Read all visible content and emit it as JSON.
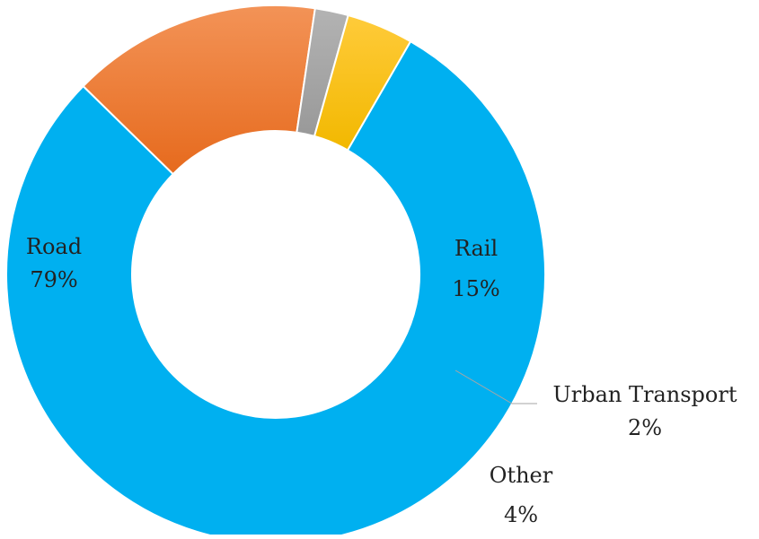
{
  "chart_data": {
    "type": "pie",
    "variant": "donut",
    "categories": [
      "Road",
      "Rail",
      "Urban Transport",
      "Other"
    ],
    "values": [
      79,
      15,
      2,
      4
    ],
    "value_labels": [
      "79%",
      "15%",
      "2%",
      "4%"
    ],
    "colors": [
      "#00b0f0",
      "#ed7d31",
      "#a5a5a5",
      "#ffc000"
    ],
    "title": "",
    "legend": "none"
  }
}
